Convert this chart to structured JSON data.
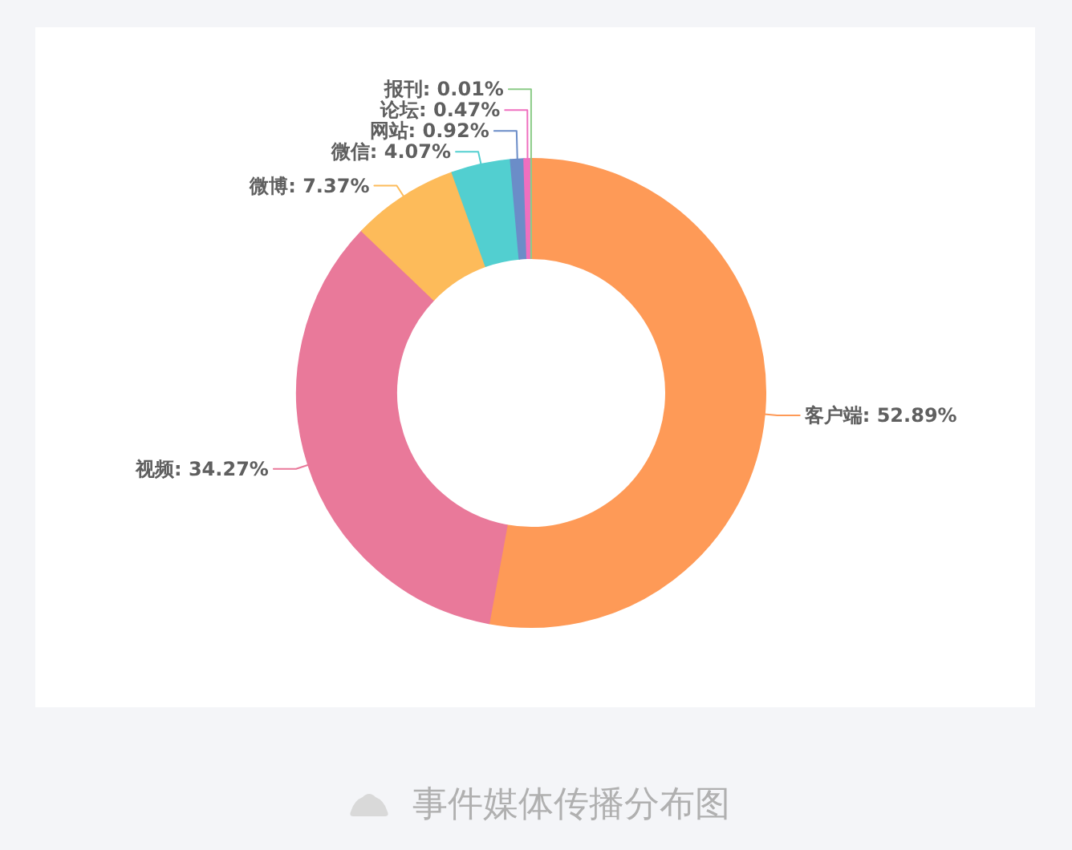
{
  "chart_data": {
    "type": "donut",
    "categories": [
      "客户端",
      "视频",
      "微博",
      "微信",
      "网站",
      "论坛",
      "报刊"
    ],
    "values": [
      52.89,
      34.27,
      7.37,
      4.07,
      0.92,
      0.47,
      0.01
    ],
    "colors": [
      "#fe9a57",
      "#e9799a",
      "#fdbb5a",
      "#52cfd0",
      "#6b8dc8",
      "#ef6fbf",
      "#8ccc88"
    ],
    "value_labels": [
      "52.89%",
      "34.27%",
      "7.37%",
      "4.07%",
      "0.92%",
      "0.47%",
      "0.01%"
    ],
    "annotations": [
      "事件媒体传播分布图"
    ]
  }
}
